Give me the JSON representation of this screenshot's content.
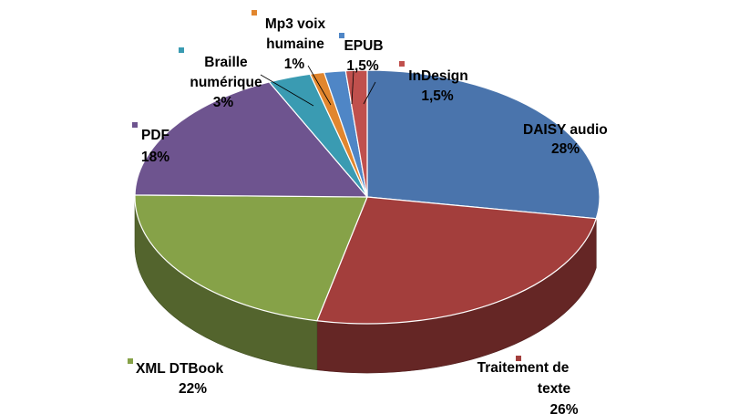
{
  "chart_data": {
    "type": "pie",
    "style": "3d",
    "title": "",
    "legend": "none",
    "unit": "%",
    "slices": [
      {
        "label": "DAISY audio",
        "value": 28,
        "value_label": "28%",
        "color": "#4a74ac"
      },
      {
        "label": "Traitement de texte",
        "value": 26,
        "value_label": "26%",
        "color": "#a33e3c"
      },
      {
        "label": "XML DTBook",
        "value": 22,
        "value_label": "22%",
        "color": "#86a248"
      },
      {
        "label": "PDF",
        "value": 18,
        "value_label": "18%",
        "color": "#6e548f"
      },
      {
        "label": "Braille numérique",
        "value": 3,
        "value_label": "3%",
        "color": "#3a9bb2"
      },
      {
        "label": "Mp3 voix humaine",
        "value": 1,
        "value_label": "1%",
        "color": "#e1862e"
      },
      {
        "label": "EPUB",
        "value": 1.5,
        "value_label": "1,5%",
        "color": "#4f86c6"
      },
      {
        "label": "InDesign",
        "value": 1.5,
        "value_label": "1,5%",
        "color": "#c0504d"
      }
    ]
  }
}
